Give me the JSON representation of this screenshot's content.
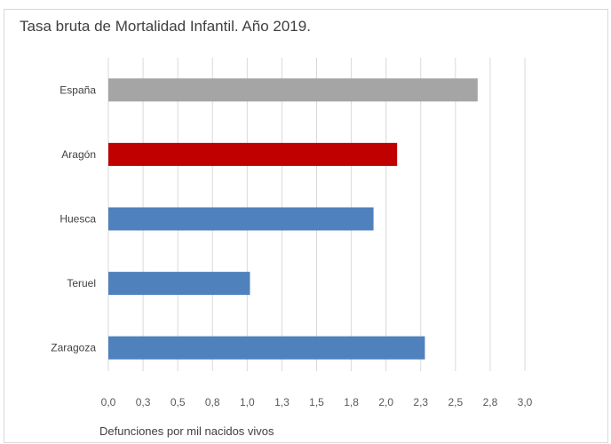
{
  "chart_data": {
    "type": "bar",
    "orientation": "horizontal",
    "title": "Tasa bruta de Mortalidad Infantil. Año 2019.",
    "xlabel": "Defunciones por mil nacidos vivos",
    "ylabel": "",
    "categories": [
      "España",
      "Aragón",
      "Huesca",
      "Teruel",
      "Zaragoza"
    ],
    "values": [
      2.66,
      2.08,
      1.91,
      1.02,
      2.28
    ],
    "colors": [
      "#a5a5a5",
      "#c00000",
      "#4f81bd",
      "#4f81bd",
      "#4f81bd"
    ],
    "xlim": [
      0,
      3.0
    ],
    "x_tick_values": [
      0,
      0.25,
      0.5,
      0.75,
      1.0,
      1.25,
      1.5,
      1.75,
      2.0,
      2.25,
      2.5,
      2.75,
      3.0
    ],
    "x_tick_labels": [
      "0,0",
      "0,3",
      "0,5",
      "0,8",
      "1,0",
      "1,3",
      "1,5",
      "1,8",
      "2,0",
      "2,3",
      "2,5",
      "2,8",
      "3,0"
    ],
    "grid": true,
    "legend": "none"
  }
}
